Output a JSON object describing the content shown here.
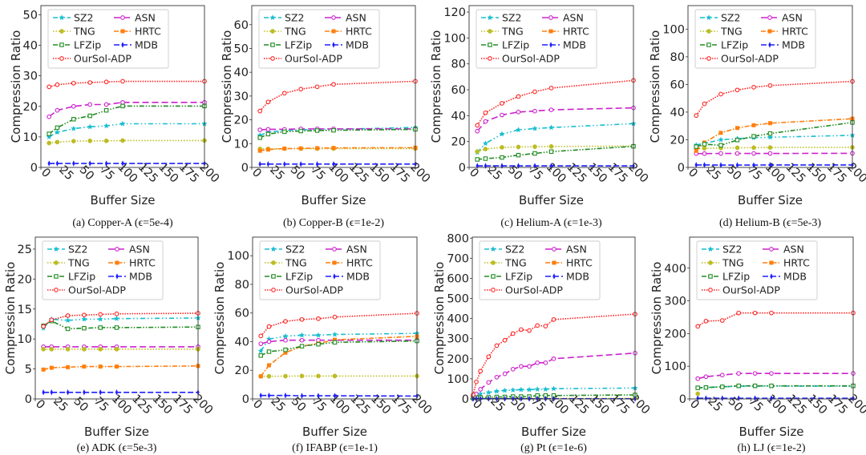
{
  "chart_data": [
    {
      "type": "line",
      "panel": "(a)",
      "caption": "(a)  Copper-A (ϵ=5e-4)",
      "xlabel": "Buffer Size",
      "ylabel": "Compression Ratio",
      "xlim": [
        0,
        200
      ],
      "ylim": [
        0,
        53
      ],
      "xticks": [
        0,
        25,
        50,
        75,
        100,
        125,
        150,
        175,
        200
      ],
      "yticks": [
        0,
        10,
        20,
        30,
        40,
        50
      ],
      "legend": "top-left",
      "x": [
        10,
        20,
        40,
        60,
        80,
        100,
        200
      ],
      "series": [
        {
          "name": "SZ2",
          "values": [
            10,
            11.5,
            12.7,
            13.3,
            13.6,
            14.3,
            14.3
          ]
        },
        {
          "name": "ASN",
          "values": [
            16.6,
            18.7,
            20,
            20.6,
            20.6,
            21.3,
            21.3
          ]
        },
        {
          "name": "TNG",
          "values": [
            8,
            8.3,
            8.6,
            8.7,
            8.7,
            8.8,
            8.8
          ]
        },
        {
          "name": "HRTC",
          "values": [
            null,
            null,
            null,
            null,
            null,
            null,
            null
          ]
        },
        {
          "name": "LFZip",
          "values": [
            11,
            13,
            15.8,
            16.9,
            18.7,
            20.1,
            20.1
          ]
        },
        {
          "name": "MDB",
          "values": [
            1.3,
            1.3,
            1.3,
            1.3,
            1.3,
            1.3,
            1.3
          ]
        },
        {
          "name": "OurSol-ADP",
          "values": [
            26.4,
            27.1,
            27.6,
            27.8,
            28,
            28.2,
            28.2
          ]
        }
      ]
    },
    {
      "type": "line",
      "panel": "(b)",
      "caption": "(b)  Copper-B (ϵ=1e-2)",
      "xlabel": "Buffer Size",
      "ylabel": "Compression Ratio",
      "xlim": [
        0,
        200
      ],
      "ylim": [
        0,
        68
      ],
      "xticks": [
        0,
        25,
        50,
        75,
        100,
        125,
        150,
        175,
        200
      ],
      "yticks": [
        0,
        10,
        20,
        30,
        40,
        50,
        60
      ],
      "legend": "top-left",
      "x": [
        10,
        20,
        40,
        60,
        80,
        100,
        200
      ],
      "series": [
        {
          "name": "SZ2",
          "values": [
            13.5,
            14.8,
            15.5,
            15.8,
            16,
            16,
            16.8
          ]
        },
        {
          "name": "ASN",
          "values": [
            15.8,
            16,
            16,
            16.2,
            16.2,
            16.2,
            16.2
          ]
        },
        {
          "name": "TNG",
          "values": [
            7.8,
            7.8,
            7.9,
            7.9,
            7.9,
            7.9,
            7.9
          ]
        },
        {
          "name": "HRTC",
          "values": [
            7,
            7.5,
            7.9,
            8,
            8.1,
            8.2,
            8.3
          ]
        },
        {
          "name": "LFZip",
          "values": [
            12.5,
            14,
            15,
            15.3,
            15.5,
            15.6,
            16
          ]
        },
        {
          "name": "MDB",
          "values": [
            1.4,
            1.4,
            1.4,
            1.4,
            1.4,
            1.4,
            1.4
          ]
        },
        {
          "name": "OurSol-ADP",
          "values": [
            23.7,
            27.5,
            31.2,
            32.9,
            33.9,
            34.9,
            36.2
          ]
        }
      ]
    },
    {
      "type": "line",
      "panel": "(c)",
      "caption": "(c)  Helium-A (ϵ=1e-3)",
      "xlabel": "Buffer Size",
      "ylabel": "Compression Ratio",
      "xlim": [
        0,
        200
      ],
      "ylim": [
        0,
        125
      ],
      "xticks": [
        0,
        25,
        50,
        75,
        100,
        125,
        150,
        175,
        200
      ],
      "yticks": [
        0,
        20,
        40,
        60,
        80,
        100,
        120
      ],
      "legend": "top-left",
      "x": [
        10,
        20,
        40,
        60,
        80,
        100,
        200
      ],
      "series": [
        {
          "name": "SZ2",
          "values": [
            11.5,
            18.5,
            25.8,
            29,
            30,
            30.8,
            33.8
          ]
        },
        {
          "name": "ASN",
          "values": [
            28,
            35.5,
            40.5,
            42.8,
            43.5,
            44.5,
            46
          ]
        },
        {
          "name": "TNG",
          "values": [
            12.3,
            14.2,
            15.5,
            15.8,
            16,
            16.2,
            16.5
          ]
        },
        {
          "name": "HRTC",
          "values": [
            null,
            null,
            null,
            null,
            null,
            null,
            null
          ]
        },
        {
          "name": "LFZip",
          "values": [
            6.2,
            6.8,
            7.7,
            9.5,
            10.8,
            12.2,
            16.3
          ]
        },
        {
          "name": "MDB",
          "values": [
            1.2,
            1.2,
            1.2,
            1.2,
            1.2,
            1.2,
            1.2
          ]
        },
        {
          "name": "OurSol-ADP",
          "values": [
            32.5,
            42.2,
            49.5,
            54.8,
            58.5,
            61.3,
            67.2
          ]
        }
      ]
    },
    {
      "type": "line",
      "panel": "(d)",
      "caption": "(d)  Helium-B (ϵ=5e-3)",
      "xlabel": "Buffer Size",
      "ylabel": "Compression Ratio",
      "xlim": [
        0,
        200
      ],
      "ylim": [
        0,
        117
      ],
      "xticks": [
        0,
        25,
        50,
        75,
        100,
        125,
        150,
        175,
        200
      ],
      "yticks": [
        0,
        20,
        40,
        60,
        80,
        100
      ],
      "legend": "top-left",
      "x": [
        10,
        20,
        40,
        60,
        80,
        100,
        200
      ],
      "series": [
        {
          "name": "SZ2",
          "values": [
            16.2,
            17.4,
            20,
            20.8,
            21.5,
            21.8,
            23.2
          ]
        },
        {
          "name": "ASN",
          "values": [
            10,
            10,
            10.1,
            10.1,
            10.1,
            10.1,
            10.2
          ]
        },
        {
          "name": "TNG",
          "values": [
            13.5,
            13.8,
            14,
            14.2,
            14.3,
            14.4,
            14.5
          ]
        },
        {
          "name": "HRTC",
          "values": [
            12,
            18,
            25,
            28.5,
            30.5,
            32,
            35.2
          ]
        },
        {
          "name": "LFZip",
          "values": [
            15,
            16.8,
            16,
            19.8,
            22.5,
            24.5,
            32.5
          ]
        },
        {
          "name": "MDB",
          "values": [
            1.8,
            1.8,
            1.7,
            1.7,
            1.7,
            1.8,
            1.8
          ]
        },
        {
          "name": "OurSol-ADP",
          "values": [
            37.5,
            46,
            53,
            56,
            58,
            59.2,
            62.2
          ]
        }
      ]
    },
    {
      "type": "line",
      "panel": "(e)",
      "caption": "(e)  ADK (ϵ=5e-3)",
      "xlabel": "Buffer Size",
      "ylabel": "Compression Ratio",
      "xlim": [
        0,
        200
      ],
      "ylim": [
        0,
        27
      ],
      "xticks": [
        0,
        25,
        50,
        75,
        100,
        125,
        150,
        175,
        200
      ],
      "yticks": [
        0,
        5,
        10,
        15,
        20,
        25
      ],
      "legend": "top-left",
      "x": [
        10,
        20,
        40,
        60,
        80,
        100,
        200
      ],
      "series": [
        {
          "name": "SZ2",
          "values": [
            11.8,
            13.3,
            13.1,
            13.3,
            13.3,
            13.4,
            13.5
          ]
        },
        {
          "name": "ASN",
          "values": [
            8.7,
            8.7,
            8.7,
            8.7,
            8.7,
            8.7,
            8.7
          ]
        },
        {
          "name": "TNG",
          "values": [
            8.3,
            8.3,
            8.3,
            8.3,
            8.3,
            8.3,
            8.3
          ]
        },
        {
          "name": "HRTC",
          "values": [
            4.9,
            5.2,
            5.3,
            5.4,
            5.4,
            5.4,
            5.5
          ]
        },
        {
          "name": "LFZip",
          "values": [
            12.2,
            13,
            11.7,
            11.8,
            11.9,
            11.9,
            12
          ]
        },
        {
          "name": "MDB",
          "values": [
            1.1,
            1.1,
            1.1,
            1.1,
            1.1,
            1.1,
            1.1
          ]
        },
        {
          "name": "OurSol-ADP",
          "values": [
            12.1,
            13.2,
            13.9,
            14,
            14.1,
            14.2,
            14.3
          ]
        }
      ]
    },
    {
      "type": "line",
      "panel": "(f)",
      "caption": "(f)  IFABP (ϵ=1e-1)",
      "xlabel": "Buffer Size",
      "ylabel": "Compression Ratio",
      "xlim": [
        0,
        200
      ],
      "ylim": [
        0,
        113
      ],
      "xticks": [
        0,
        25,
        50,
        75,
        100,
        125,
        150,
        175,
        200
      ],
      "yticks": [
        0,
        20,
        40,
        60,
        80,
        100
      ],
      "legend": "top-left",
      "x": [
        10,
        20,
        40,
        60,
        80,
        100,
        200
      ],
      "series": [
        {
          "name": "SZ2",
          "values": [
            33.5,
            41.8,
            43.8,
            44.5,
            44.5,
            45,
            45.8
          ]
        },
        {
          "name": "ASN",
          "values": [
            38.5,
            40,
            41,
            41,
            41,
            41,
            41
          ]
        },
        {
          "name": "TNG",
          "values": [
            15.8,
            15.8,
            15.9,
            16,
            16,
            16,
            16
          ]
        },
        {
          "name": "HRTC",
          "values": [
            15.8,
            23.5,
            32.3,
            36.8,
            38.7,
            41.3,
            43.7
          ]
        },
        {
          "name": "LFZip",
          "values": [
            30.3,
            33,
            34.3,
            36.8,
            38.2,
            39.5,
            40.5
          ]
        },
        {
          "name": "MDB",
          "values": [
            2.4,
            2.4,
            2.4,
            2.2,
            2.2,
            2.2,
            2
          ]
        },
        {
          "name": "OurSol-ADP",
          "values": [
            44,
            50.5,
            54.2,
            55.5,
            56,
            57.2,
            59.8
          ]
        }
      ]
    },
    {
      "type": "line",
      "panel": "(g)",
      "caption": "(g)  Pt (ϵ=1e-6)",
      "xlabel": "Buffer Size",
      "ylabel": "Compression Ratio",
      "xlim": [
        0,
        200
      ],
      "ylim": [
        0,
        805
      ],
      "xticks": [
        0,
        25,
        50,
        75,
        100,
        125,
        150,
        175,
        200
      ],
      "yticks": [
        0,
        100,
        200,
        300,
        400,
        500,
        600,
        700,
        800
      ],
      "legend": "top-left",
      "x": [
        1,
        5,
        10,
        20,
        30,
        40,
        50,
        60,
        70,
        80,
        90,
        100,
        200
      ],
      "series": [
        {
          "name": "SZ2",
          "values": [
            15,
            20,
            25,
            32,
            38,
            42,
            44,
            46,
            46,
            48,
            48,
            51,
            54
          ]
        },
        {
          "name": "ASN",
          "values": [
            10,
            25,
            48,
            82,
            108,
            125,
            148,
            162,
            162,
            180,
            180,
            200,
            228
          ]
        },
        {
          "name": "TNG",
          "values": [
            2,
            3,
            3,
            3,
            3,
            3,
            3,
            3,
            3,
            3,
            3,
            3,
            3
          ]
        },
        {
          "name": "HRTC",
          "values": [
            null,
            null,
            null,
            null,
            null,
            null,
            null,
            null,
            null,
            null,
            null,
            null,
            null
          ]
        },
        {
          "name": "LFZip",
          "values": [
            5,
            7,
            8,
            8,
            10,
            10,
            12,
            12,
            12,
            17,
            17,
            17,
            20
          ]
        },
        {
          "name": "MDB",
          "values": [
            1,
            1,
            1,
            1,
            1,
            1,
            1,
            1,
            1,
            1,
            1,
            1,
            1
          ]
        },
        {
          "name": "OurSol-ADP",
          "values": [
            20,
            85,
            138,
            210,
            265,
            292,
            325,
            345,
            340,
            365,
            362,
            395,
            422
          ]
        }
      ]
    },
    {
      "type": "line",
      "panel": "(h)",
      "caption": "(h)  LJ (ϵ=1e-2)",
      "xlabel": "Buffer Size",
      "ylabel": "Compression Ratio",
      "xlim": [
        0,
        200
      ],
      "ylim": [
        0,
        495
      ],
      "xticks": [
        0,
        25,
        50,
        75,
        100,
        125,
        150,
        175,
        200
      ],
      "yticks": [
        0,
        100,
        200,
        300,
        400
      ],
      "legend": "top-left",
      "x": [
        10,
        20,
        40,
        60,
        80,
        100,
        200
      ],
      "series": [
        {
          "name": "SZ2",
          "values": [
            34,
            35,
            37,
            39,
            39,
            39,
            39
          ]
        },
        {
          "name": "ASN",
          "values": [
            62,
            68,
            73,
            78,
            78,
            78,
            78
          ]
        },
        {
          "name": "TNG",
          "values": [
            16,
            null,
            null,
            null,
            null,
            null,
            null
          ]
        },
        {
          "name": "HRTC",
          "values": [
            null,
            null,
            null,
            null,
            null,
            null,
            null
          ]
        },
        {
          "name": "LFZip",
          "values": [
            34,
            35,
            37,
            40,
            40,
            40,
            40
          ]
        },
        {
          "name": "MDB",
          "values": [
            2,
            2,
            2,
            2,
            2,
            2,
            2
          ]
        },
        {
          "name": "OurSol-ADP",
          "values": [
            222,
            238,
            240,
            263,
            263,
            263,
            263
          ]
        }
      ]
    }
  ],
  "legend_entries": [
    "SZ2",
    "ASN",
    "TNG",
    "HRTC",
    "LFZip",
    "MDB",
    "OurSol-ADP"
  ],
  "series_styles": {
    "SZ2": {
      "color": "#17becf",
      "marker": "star",
      "dash": "6,3,1.5,3,1.5,3"
    },
    "ASN": {
      "color": "#cc22cc",
      "marker": "open-circle",
      "dash": "8,4"
    },
    "TNG": {
      "color": "#bcbd22",
      "marker": "filled-circle",
      "dash": "1.5,2"
    },
    "HRTC": {
      "color": "#ff7f0e",
      "marker": "filled-square",
      "dash": "6,2,1.5,2"
    },
    "LFZip": {
      "color": "#228B22",
      "marker": "open-square",
      "dash": "6,2,1.5,2,1.5,2"
    },
    "MDB": {
      "color": "#1f1fff",
      "marker": "thin-diamond",
      "dash": "7,3"
    },
    "OurSol-ADP": {
      "color": "#ff2222",
      "marker": "open-circle",
      "dash": "1.5,1.5"
    }
  }
}
